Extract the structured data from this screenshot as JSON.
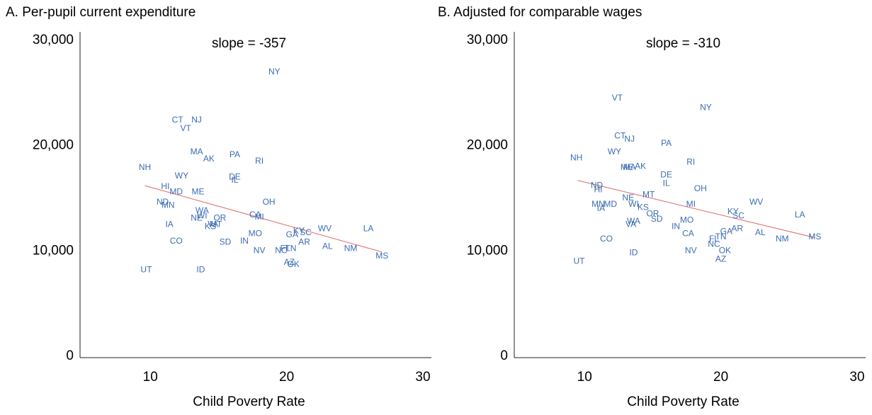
{
  "chart_data": [
    {
      "type": "scatter",
      "title": "A. Per-pupil current expenditure",
      "annotation": "slope = -357",
      "x_label": "Child Poverty Rate",
      "color": "#3b6db3",
      "trend_color": "#e06666",
      "labels": [
        "NY",
        "CT",
        "NJ",
        "VT",
        "MA",
        "AK",
        "PA",
        "RI",
        "NH",
        "WY",
        "DE",
        "IL",
        "HI",
        "MD",
        "ME",
        "OH",
        "ND",
        "MN",
        "WA",
        "CA",
        "MI",
        "NE",
        "WI",
        "OR",
        "KS",
        "MT",
        "VA",
        "IA",
        "MO",
        "GA",
        "KY",
        "SC",
        "WV",
        "LA",
        "CO",
        "SD",
        "IN",
        "AR",
        "AL",
        "NM",
        "NV",
        "FL",
        "TN",
        "NC",
        "MS",
        "AZ",
        "OK",
        "UT",
        "ID"
      ],
      "x": [
        19.1,
        12.0,
        13.4,
        12.6,
        13.4,
        14.3,
        16.2,
        18.0,
        9.6,
        12.3,
        16.2,
        16.2,
        11.1,
        11.9,
        13.5,
        18.7,
        10.9,
        11.3,
        13.8,
        17.7,
        18.0,
        13.4,
        13.8,
        15.1,
        14.4,
        14.8,
        14.6,
        11.4,
        17.7,
        20.4,
        20.9,
        21.4,
        22.8,
        26.0,
        11.9,
        15.5,
        16.9,
        21.3,
        23.0,
        24.7,
        18.0,
        19.9,
        20.3,
        19.6,
        27.0,
        20.2,
        20.5,
        9.7,
        13.7
      ],
      "y": [
        27000,
        22400,
        22400,
        21600,
        19400,
        18700,
        19100,
        18500,
        17900,
        17100,
        17000,
        16700,
        16100,
        15600,
        15600,
        14600,
        14600,
        14300,
        13800,
        13400,
        13200,
        13100,
        13300,
        13100,
        12300,
        12500,
        12500,
        12500,
        11600,
        11500,
        11900,
        11700,
        12100,
        12100,
        10900,
        10800,
        10900,
        10800,
        10400,
        10200,
        10000,
        10200,
        10200,
        10000,
        9500,
        8900,
        8700,
        8200,
        8200
      ],
      "trend": {
        "x": [
          9.6,
          27.0
        ],
        "y": [
          16200,
          9900
        ]
      },
      "xlim": [
        5,
        30
      ],
      "xticks": [
        10,
        20,
        30
      ],
      "ylim": [
        0,
        30000
      ],
      "yticks": [
        0,
        {
          "value": 10000,
          "label": "10,000"
        },
        {
          "value": 20000,
          "label": "20,000"
        },
        {
          "value": 30000,
          "label": "30,000"
        }
      ]
    },
    {
      "type": "scatter",
      "title": "B. Adjusted for comparable wages",
      "annotation": "slope = -310",
      "x_label": "Child Poverty Rate",
      "color": "#3b6db3",
      "trend_color": "#e06666",
      "labels": [
        "VT",
        "NY",
        "CT",
        "NJ",
        "PA",
        "WY",
        "NH",
        "RI",
        "MA",
        "ME",
        "AK",
        "DE",
        "IL",
        "ND",
        "HI",
        "OH",
        "MT",
        "NE",
        "WV",
        "MI",
        "WI",
        "MN",
        "MD",
        "IA",
        "KS",
        "KY",
        "LA",
        "OR",
        "SC",
        "SD",
        "MO",
        "WA",
        "VA",
        "IN",
        "AR",
        "AL",
        "GA",
        "CA",
        "TN",
        "FL",
        "MS",
        "CO",
        "NC",
        "NM",
        "NV",
        "OK",
        "ID",
        "AZ",
        "UT"
      ],
      "x": [
        12.4,
        18.9,
        12.6,
        13.3,
        16.0,
        12.2,
        9.4,
        17.8,
        13.3,
        13.1,
        14.1,
        16.0,
        16.0,
        10.9,
        11.0,
        18.5,
        14.7,
        13.2,
        22.6,
        17.8,
        13.6,
        11.0,
        11.9,
        11.2,
        14.3,
        20.9,
        25.8,
        15.0,
        21.3,
        15.3,
        17.5,
        13.6,
        13.4,
        16.7,
        21.2,
        22.9,
        20.4,
        17.6,
        20.0,
        19.5,
        26.9,
        11.6,
        19.5,
        24.5,
        17.8,
        20.3,
        13.6,
        20.0,
        9.6
      ],
      "y": [
        24500,
        23600,
        20900,
        20600,
        20200,
        19400,
        18800,
        18400,
        17900,
        17900,
        18000,
        17200,
        16400,
        16200,
        15800,
        15900,
        15300,
        15000,
        14600,
        14400,
        14400,
        14400,
        14400,
        14000,
        14100,
        13700,
        13400,
        13500,
        13300,
        13000,
        12900,
        12800,
        12500,
        12300,
        12100,
        11700,
        11800,
        11600,
        11300,
        11100,
        11300,
        11100,
        10600,
        11100,
        10000,
        10000,
        9800,
        9200,
        9000
      ],
      "trend": {
        "x": [
          9.5,
          26.9
        ],
        "y": [
          16700,
          11260
        ]
      },
      "xlim": [
        5,
        30
      ],
      "xticks": [
        10,
        20,
        30
      ],
      "ylim": [
        0,
        30000
      ],
      "yticks": [
        0,
        {
          "value": 10000,
          "label": "10,000"
        },
        {
          "value": 20000,
          "label": "20,000"
        },
        {
          "value": 30000,
          "label": "30,000"
        }
      ]
    }
  ]
}
